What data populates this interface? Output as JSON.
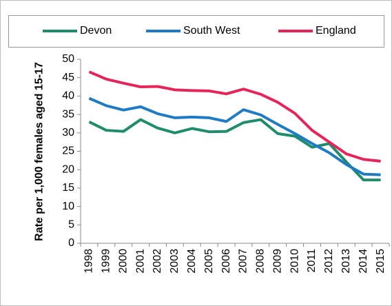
{
  "chart_data": {
    "type": "line",
    "ylabel": "Rate per 1,000 females aged 15-17",
    "categories": [
      "1998",
      "1999",
      "2000",
      "2001",
      "2002",
      "2003",
      "2004",
      "2005",
      "2006",
      "2007",
      "2008",
      "2009",
      "2010",
      "2011",
      "2012",
      "2013",
      "2014",
      "2015"
    ],
    "series": [
      {
        "name": "Devon",
        "color": "#1f8c6c",
        "values": [
          33,
          30.7,
          30.4,
          33.6,
          31.3,
          30,
          31.2,
          30.3,
          30.4,
          32.8,
          33.6,
          29.8,
          29.1,
          26.1,
          27.1,
          22.1,
          17.2,
          17.2
        ]
      },
      {
        "name": "South West",
        "color": "#1f7bc4",
        "values": [
          39.4,
          37.4,
          36.2,
          37.1,
          35.2,
          34.1,
          34.3,
          34.1,
          33.1,
          36.3,
          34.9,
          32.3,
          29.8,
          27.1,
          24.6,
          21.4,
          18.8,
          18.6
        ]
      },
      {
        "name": "England",
        "color": "#e6245a",
        "values": [
          46.6,
          44.6,
          43.5,
          42.5,
          42.6,
          41.7,
          41.5,
          41.4,
          40.6,
          41.9,
          40.5,
          38.3,
          35.3,
          30.7,
          27.5,
          24.3,
          22.8,
          22.3
        ]
      }
    ],
    "ylim": [
      0,
      50
    ],
    "yticks": [
      0,
      5,
      10,
      15,
      20,
      25,
      30,
      35,
      40,
      45,
      50
    ],
    "legend": "top"
  }
}
